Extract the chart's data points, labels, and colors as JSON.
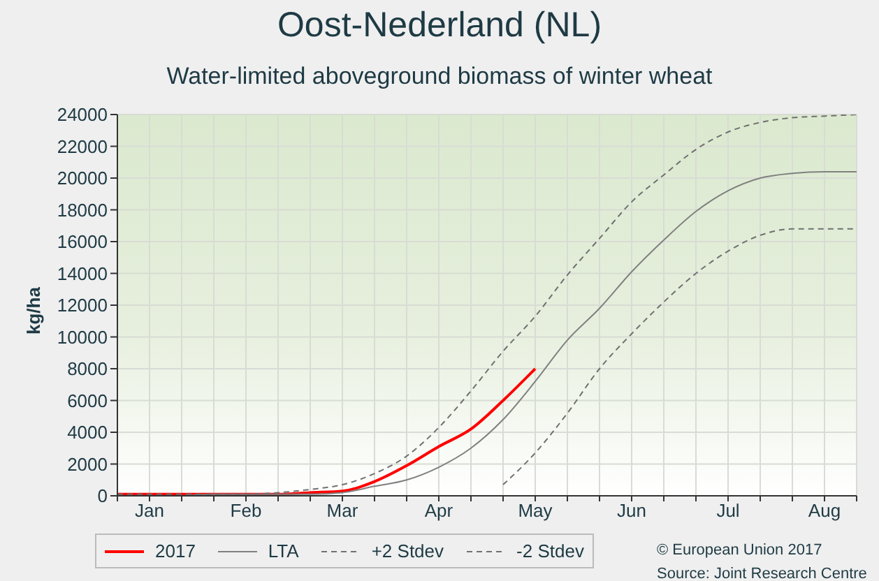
{
  "chart_data": {
    "type": "line",
    "title": "Oost-Nederland (NL)",
    "subtitle": "Water-limited aboveground biomass of winter wheat",
    "ylabel": "kg/ha",
    "categories": [
      null,
      "Jan",
      null,
      null,
      "Feb",
      null,
      null,
      "Mar",
      null,
      null,
      "Apr",
      null,
      null,
      "May",
      null,
      null,
      "Jun",
      null,
      null,
      "Jul",
      null,
      null,
      "Aug",
      null
    ],
    "ylim": [
      0,
      24000
    ],
    "yticks": [
      0,
      2000,
      4000,
      6000,
      8000,
      10000,
      12000,
      14000,
      16000,
      18000,
      20000,
      22000,
      24000
    ],
    "grid": true,
    "legend": "bottom left",
    "series": [
      {
        "name": "2017",
        "color": "#ff0000",
        "line_style": "solid",
        "values": [
          100,
          100,
          100,
          100,
          100,
          100,
          200,
          300,
          900,
          1900,
          3100,
          4200,
          6000,
          8000,
          null,
          null,
          null,
          null,
          null,
          null,
          null,
          null,
          null,
          null
        ]
      },
      {
        "name": "LTA",
        "color": "#808080",
        "line_style": "solid",
        "values": [
          0,
          0,
          0,
          100,
          100,
          100,
          100,
          200,
          600,
          1000,
          1800,
          3000,
          4800,
          7200,
          9800,
          11800,
          14100,
          16100,
          17900,
          19200,
          20000,
          20300,
          20400,
          20400
        ]
      },
      {
        "name": "+2 Stdev",
        "color": "#707070",
        "line_style": "dashed",
        "values": [
          100,
          100,
          100,
          100,
          100,
          200,
          400,
          700,
          1400,
          2500,
          4300,
          6600,
          9100,
          11300,
          13900,
          16200,
          18500,
          20200,
          21800,
          22900,
          23500,
          23800,
          23900,
          24000
        ]
      },
      {
        "name": "-2 Stdev",
        "color": "#707070",
        "line_style": "dashed",
        "values": [
          null,
          null,
          null,
          null,
          null,
          null,
          null,
          null,
          null,
          null,
          null,
          null,
          700,
          2700,
          5200,
          8000,
          10200,
          12200,
          14000,
          15400,
          16400,
          16800,
          16800,
          16800
        ]
      }
    ],
    "annotations": [
      "© European Union 2017",
      "Source: Joint Research Centre"
    ]
  }
}
